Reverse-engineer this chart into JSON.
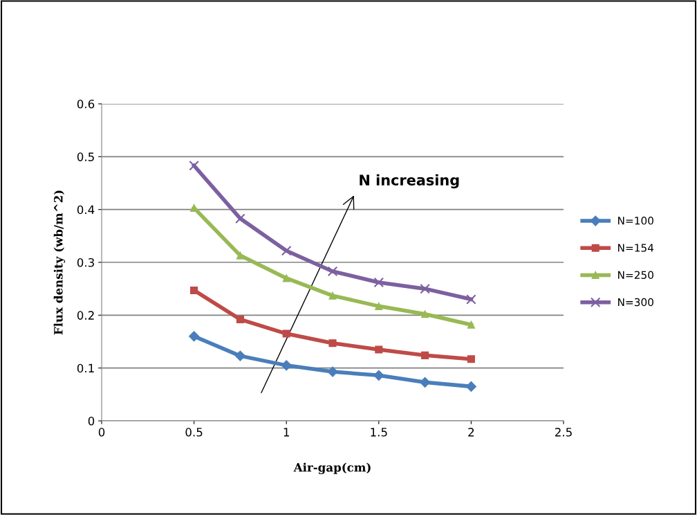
{
  "chart_data": {
    "type": "line",
    "xlabel": "Air-gap(cm)",
    "ylabel": "Flux density (wb/m^2)",
    "x": [
      0.5,
      0.75,
      1.0,
      1.25,
      1.5,
      1.75,
      2.0
    ],
    "xlim": [
      0,
      2.5
    ],
    "xticks": [
      0,
      0.5,
      1,
      1.5,
      2,
      2.5
    ],
    "ylim": [
      0,
      0.6
    ],
    "yticks": [
      0,
      0.1,
      0.2,
      0.3,
      0.4,
      0.5,
      0.6
    ],
    "grid": "y",
    "legend": "right",
    "series": [
      {
        "name": "N=100",
        "color": "#4a7ebb",
        "marker": "diamond",
        "values": [
          0.16,
          0.123,
          0.105,
          0.093,
          0.086,
          0.073,
          0.065
        ]
      },
      {
        "name": "N=154",
        "color": "#be4b48",
        "marker": "square",
        "values": [
          0.247,
          0.192,
          0.165,
          0.147,
          0.135,
          0.124,
          0.117
        ]
      },
      {
        "name": "N=250",
        "color": "#98b954",
        "marker": "triangle",
        "values": [
          0.403,
          0.313,
          0.27,
          0.237,
          0.217,
          0.202,
          0.182
        ]
      },
      {
        "name": "N=300",
        "color": "#7d60a0",
        "marker": "cross",
        "values": [
          0.483,
          0.383,
          0.322,
          0.283,
          0.262,
          0.25,
          0.23
        ]
      }
    ],
    "annotations": [
      "N increasing"
    ]
  }
}
